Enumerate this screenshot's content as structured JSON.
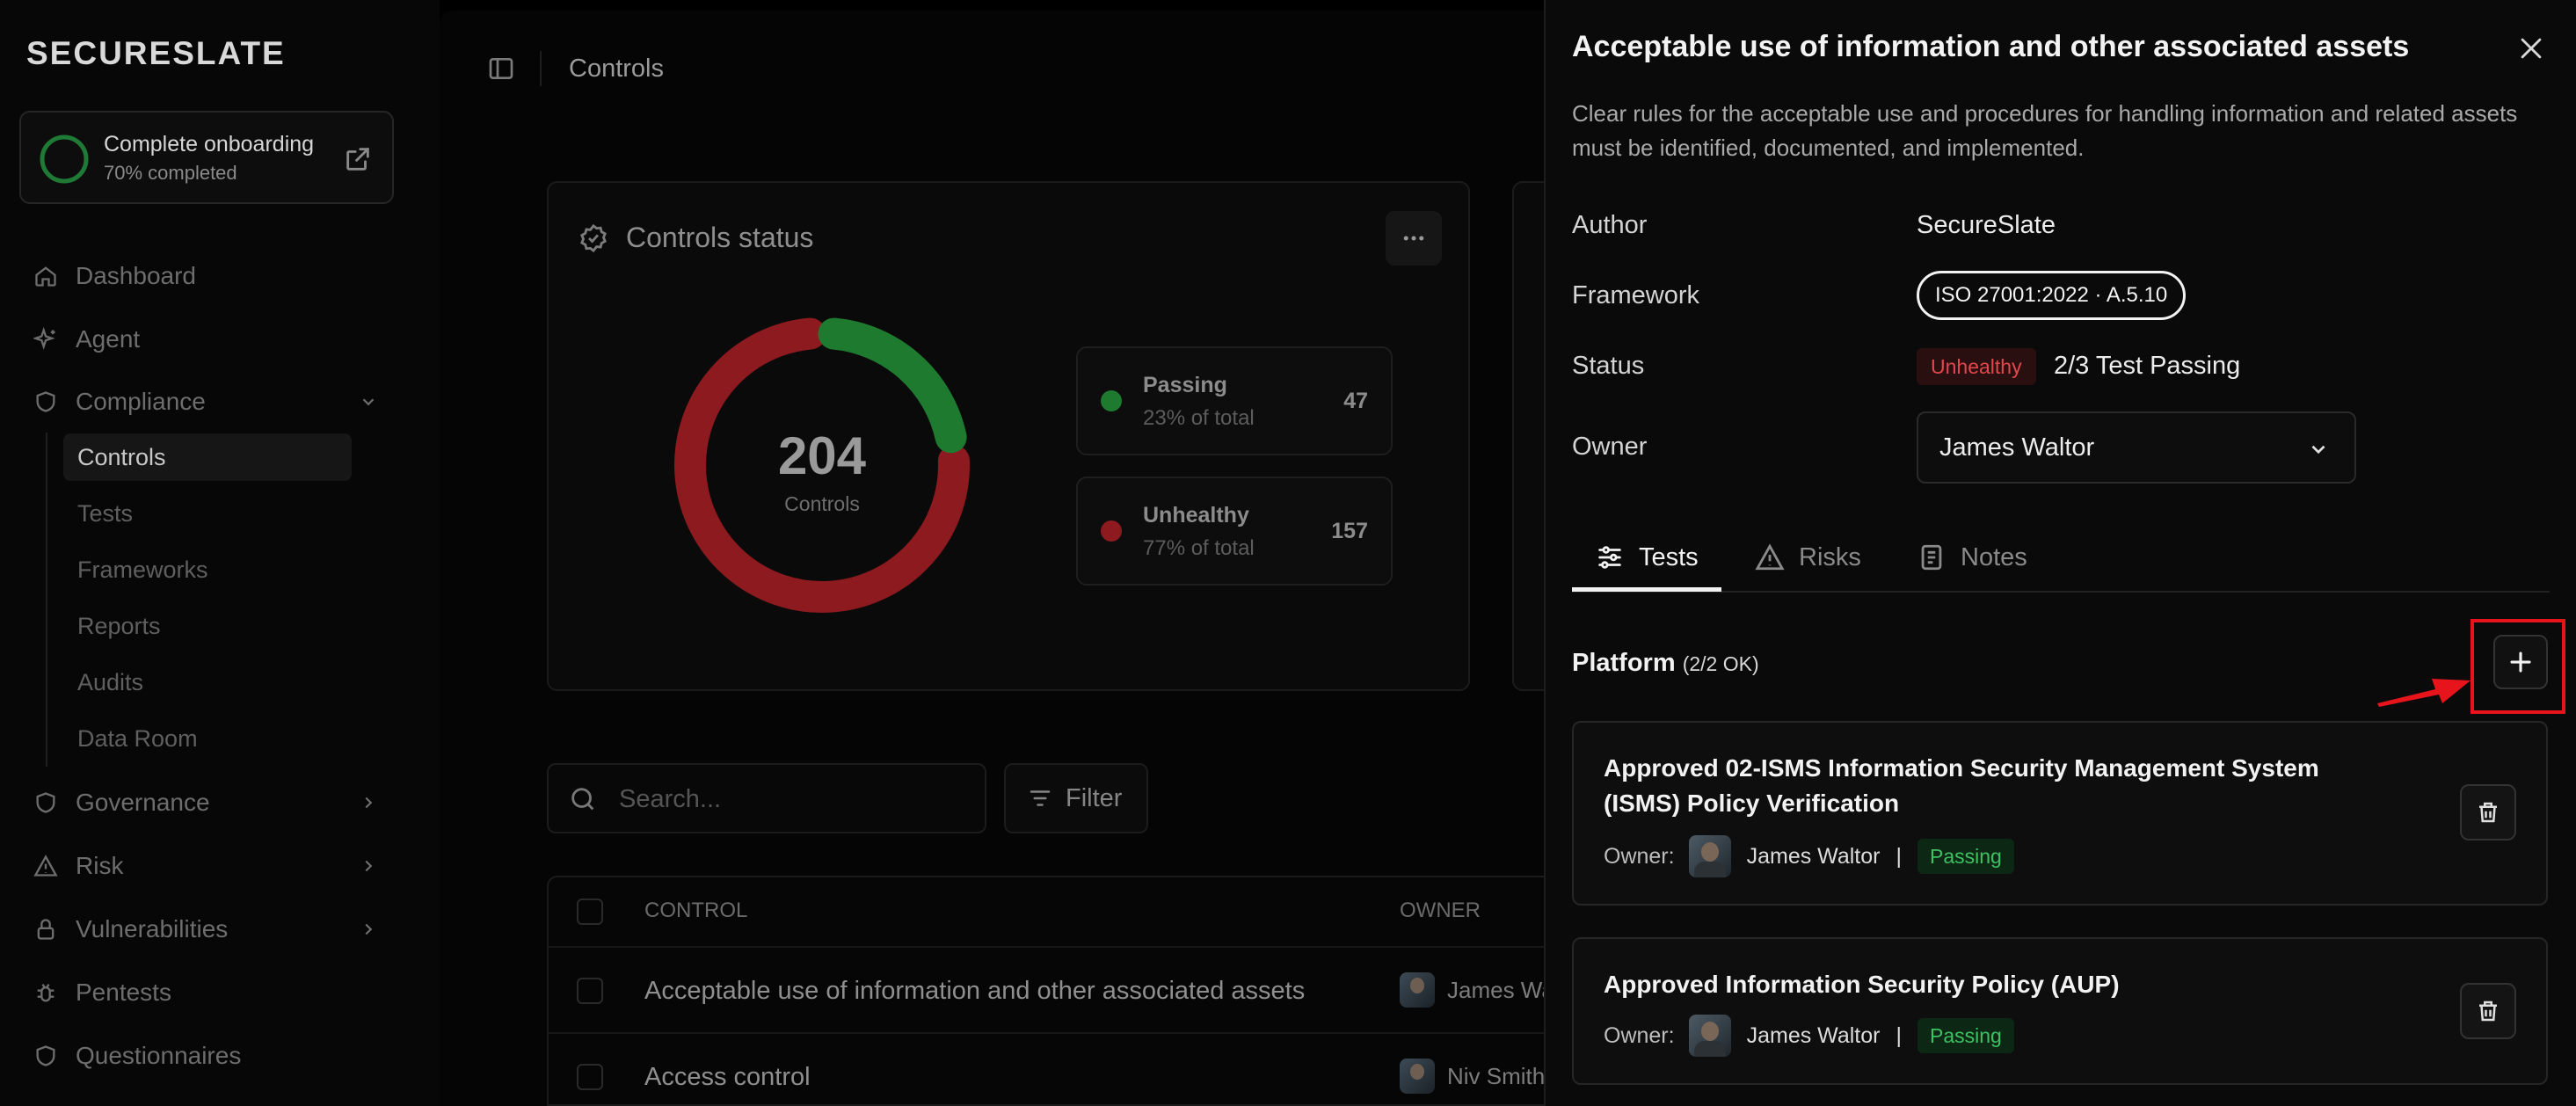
{
  "sidebar": {
    "logo": "SECURESLATE",
    "onboarding": {
      "title": "Complete onboarding",
      "progress_text": "70% completed",
      "progress": 0.7
    },
    "nav": {
      "dashboard": "Dashboard",
      "agent": "Agent",
      "compliance": "Compliance",
      "governance": "Governance",
      "risk": "Risk",
      "vulnerabilities": "Vulnerabilities",
      "pentests": "Pentests",
      "questionnaires": "Questionnaires"
    },
    "compliance_sub": [
      "Controls",
      "Tests",
      "Frameworks",
      "Reports",
      "Audits",
      "Data Room"
    ]
  },
  "main": {
    "page_title": "Controls",
    "controls_status": {
      "title": "Controls status",
      "total": "204",
      "total_label": "Controls",
      "passing": {
        "name": "Passing",
        "pct": "23% of total",
        "count": "47"
      },
      "unhealthy": {
        "name": "Unhealthy",
        "pct": "77% of total",
        "count": "157"
      }
    },
    "search_placeholder": "Search...",
    "filter_label": "Filter",
    "table": {
      "col_control": "CONTROL",
      "col_owner": "OWNER",
      "rows": [
        {
          "control": "Acceptable use of information and other associated assets",
          "owner": "James Wa"
        },
        {
          "control": "Access control",
          "owner": "Niv Smith"
        }
      ]
    }
  },
  "panel": {
    "title": "Acceptable use of information and other associated assets",
    "description": "Clear rules for the acceptable use and procedures for handling information and related assets must be identified, documented, and implemented.",
    "author_label": "Author",
    "author": "SecureSlate",
    "framework_label": "Framework",
    "framework": "ISO 27001:2022 · A.5.10",
    "status_label": "Status",
    "status_badge": "Unhealthy",
    "status_text": "2/3 Test Passing",
    "owner_label": "Owner",
    "owner": "James Waltor",
    "tabs": {
      "tests": "Tests",
      "risks": "Risks",
      "notes": "Notes"
    },
    "platform_title": "Platform",
    "platform_count": "(2/2 OK)",
    "tests": [
      {
        "title": "Approved 02-ISMS Information Security Management System (ISMS) Policy Verification",
        "owner_label": "Owner:",
        "owner": "James Waltor",
        "sep": "|",
        "status": "Passing"
      },
      {
        "title": "Approved Information Security Policy (AUP)",
        "owner_label": "Owner:",
        "owner": "James Waltor",
        "sep": "|",
        "status": "Passing"
      }
    ]
  },
  "colors": {
    "passing": "#1e7a2f",
    "unhealthy": "#8c1a1f",
    "highlight": "#e8141b"
  }
}
